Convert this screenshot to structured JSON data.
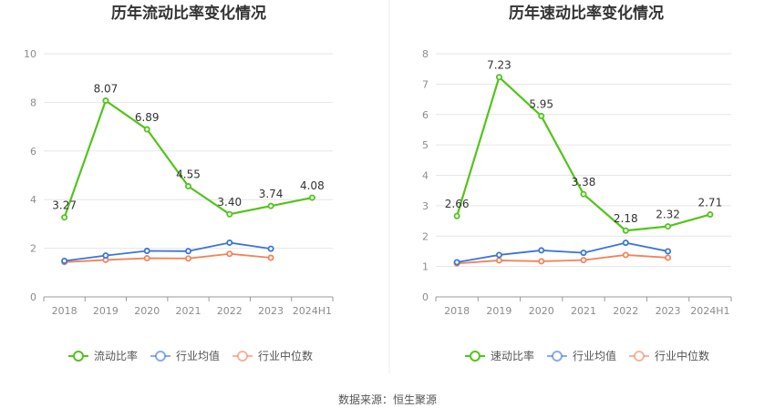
{
  "chart_data": [
    {
      "type": "line",
      "title": "历年流动比率变化情况",
      "categories": [
        "2018",
        "2019",
        "2020",
        "2021",
        "2022",
        "2023",
        "2024H1"
      ],
      "ylim": [
        0,
        10
      ],
      "yticks": [
        0,
        2,
        4,
        6,
        8,
        10
      ],
      "ytick_labels": [
        "0",
        "2",
        "4",
        "6",
        "8",
        "10"
      ],
      "grid": true,
      "legend_position": "bottom",
      "series": [
        {
          "name": "流动比率",
          "color": "#52c41a",
          "values": [
            3.27,
            8.07,
            6.89,
            4.55,
            3.4,
            3.74,
            4.08
          ],
          "labels": [
            "3.27",
            "8.07",
            "6.89",
            "4.55",
            "3.40",
            "3.74",
            "4.08"
          ]
        },
        {
          "name": "行业均值",
          "color": "#3a75d8",
          "values": [
            1.48,
            1.7,
            1.89,
            1.88,
            2.23,
            1.98,
            null
          ]
        },
        {
          "name": "行业中位数",
          "color": "#f0845a",
          "values": [
            1.43,
            1.52,
            1.59,
            1.58,
            1.77,
            1.61,
            null
          ]
        }
      ]
    },
    {
      "type": "line",
      "title": "历年速动比率变化情况",
      "categories": [
        "2018",
        "2019",
        "2020",
        "2021",
        "2022",
        "2023",
        "2024H1"
      ],
      "ylim": [
        0,
        8
      ],
      "yticks": [
        0,
        1,
        2,
        3,
        4,
        5,
        6,
        7,
        8
      ],
      "ytick_labels": [
        "0",
        "1",
        "2",
        "3",
        "4",
        "5",
        "6",
        "7",
        "8"
      ],
      "grid": true,
      "legend_position": "bottom",
      "series": [
        {
          "name": "速动比率",
          "color": "#52c41a",
          "values": [
            2.66,
            7.23,
            5.95,
            3.38,
            2.18,
            2.32,
            2.71
          ],
          "labels": [
            "2.66",
            "7.23",
            "5.95",
            "3.38",
            "2.18",
            "2.32",
            "2.71"
          ]
        },
        {
          "name": "行业均值",
          "color": "#3a75d8",
          "values": [
            1.14,
            1.38,
            1.53,
            1.45,
            1.78,
            1.5,
            null
          ]
        },
        {
          "name": "行业中位数",
          "color": "#f0845a",
          "values": [
            1.1,
            1.2,
            1.17,
            1.21,
            1.38,
            1.29,
            null
          ]
        }
      ]
    }
  ],
  "footer": {
    "source": "数据来源：恒生聚源"
  }
}
